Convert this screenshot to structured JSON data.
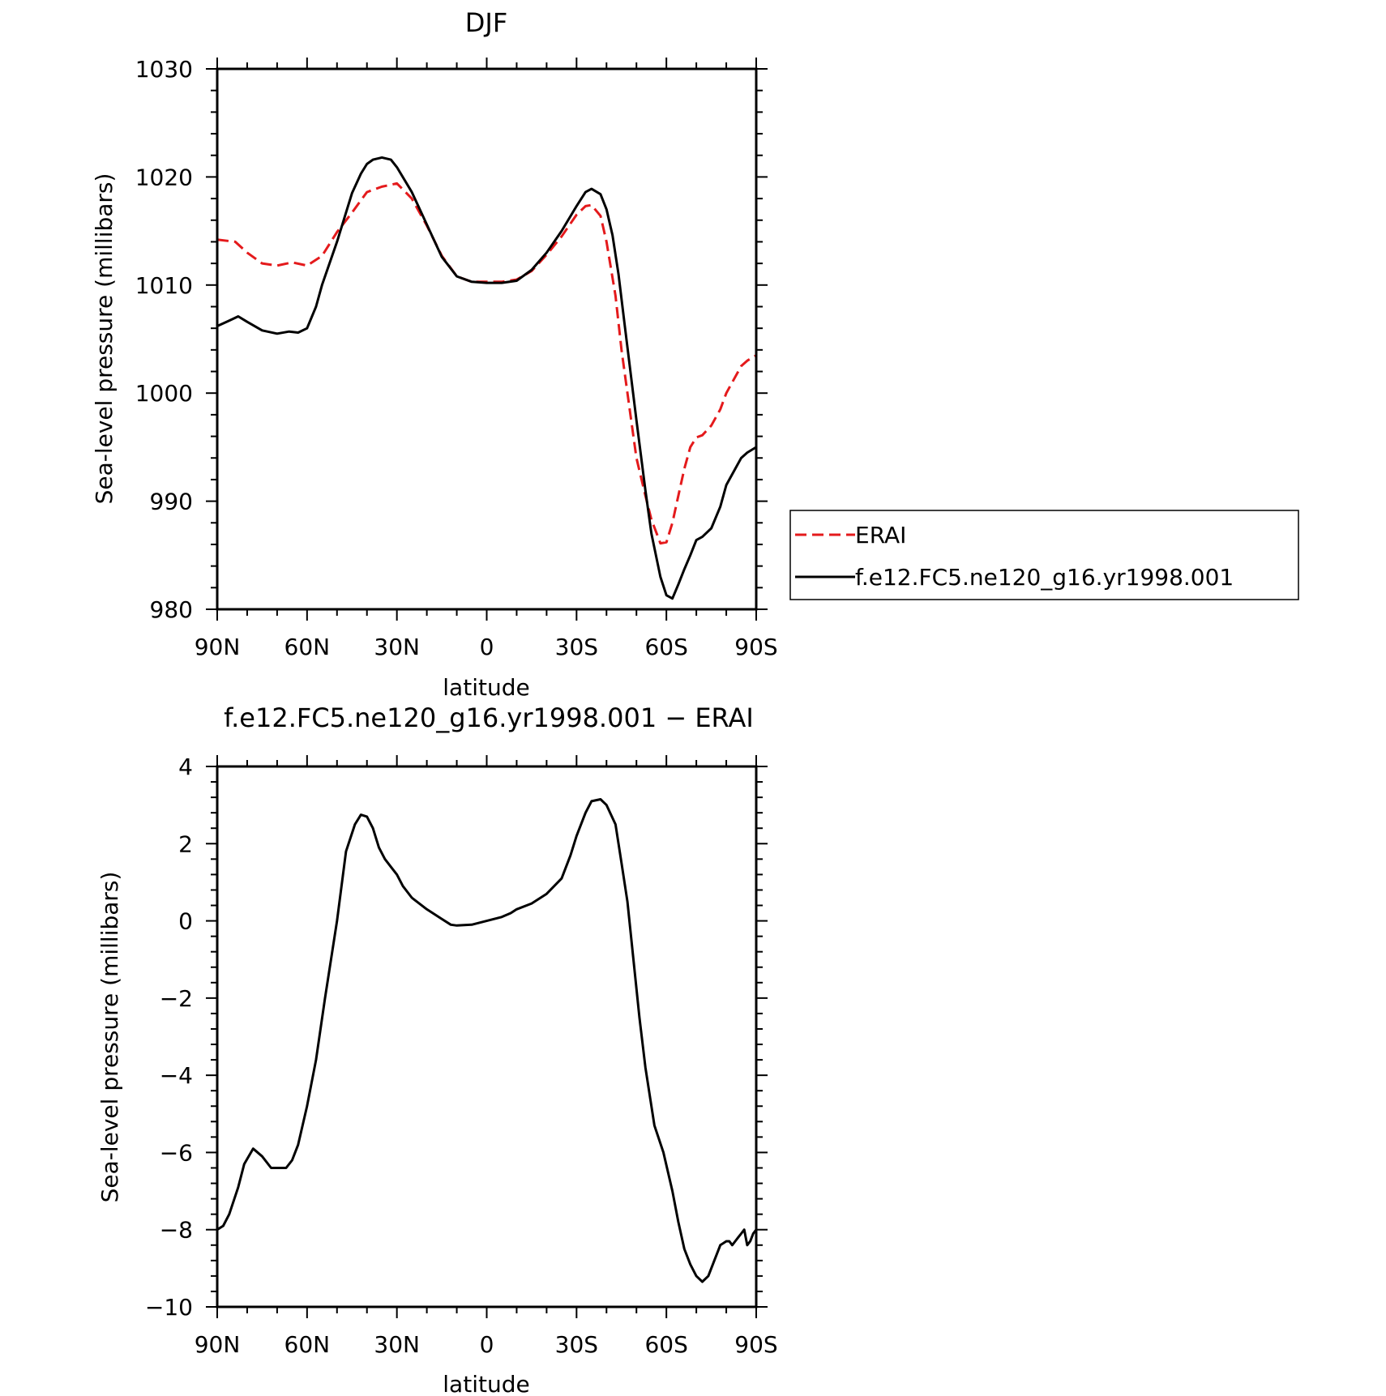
{
  "chart_data": [
    {
      "type": "line",
      "title": "DJF",
      "xlabel": "latitude",
      "ylabel": "Sea-level pressure (millibars)",
      "xlim": [
        90,
        -90
      ],
      "ylim": [
        980,
        1030
      ],
      "xticks": [
        90,
        60,
        30,
        0,
        -30,
        -60,
        -90
      ],
      "xtick_labels": [
        "90N",
        "60N",
        "30N",
        "0",
        "30S",
        "60S",
        "90S"
      ],
      "yticks": [
        980,
        990,
        1000,
        1010,
        1020,
        1030
      ],
      "ytick_labels": [
        "980",
        "990",
        "1000",
        "1010",
        "1020",
        "1030"
      ],
      "legend": "right",
      "series": [
        {
          "name": "ERAI",
          "color": "#e41a1c",
          "dash": "dashed",
          "x": [
            90,
            84,
            80,
            75,
            70,
            65,
            60,
            55,
            50,
            45,
            40,
            35,
            30,
            25,
            20,
            15,
            10,
            5,
            0,
            -5,
            -10,
            -15,
            -20,
            -25,
            -30,
            -33,
            -35,
            -38,
            -40,
            -43,
            -45,
            -48,
            -50,
            -53,
            -55,
            -58,
            -60,
            -62,
            -64,
            -66,
            -68,
            -70,
            -72,
            -75,
            -78,
            -80,
            -83,
            -85,
            -87,
            -90
          ],
          "y": [
            1014.2,
            1014.0,
            1013.0,
            1012.0,
            1011.8,
            1012.1,
            1011.8,
            1012.7,
            1014.9,
            1016.7,
            1018.6,
            1019.1,
            1019.4,
            1018.0,
            1015.5,
            1012.7,
            1010.8,
            1010.3,
            1010.3,
            1010.3,
            1010.5,
            1011.3,
            1012.8,
            1014.5,
            1016.5,
            1017.3,
            1017.4,
            1016.4,
            1014.0,
            1009.0,
            1004.0,
            998.0,
            994.0,
            990.5,
            988.3,
            986.1,
            986.2,
            988.0,
            990.5,
            993.0,
            995.0,
            995.9,
            996.1,
            997.0,
            998.5,
            1000.0,
            1001.5,
            1002.5,
            1003.0,
            1003.5
          ]
        },
        {
          "name": "f.e12.FC5.ne120_g16.yr1998.001",
          "color": "#000000",
          "dash": "solid",
          "x": [
            90,
            86,
            83,
            80,
            75,
            70,
            66,
            63,
            60,
            57,
            55,
            50,
            45,
            42,
            40,
            38,
            35,
            32,
            30,
            25,
            20,
            15,
            10,
            5,
            0,
            -5,
            -10,
            -15,
            -20,
            -25,
            -30,
            -33,
            -35,
            -38,
            -40,
            -42,
            -44,
            -46,
            -48,
            -50,
            -53,
            -55,
            -58,
            -60,
            -62,
            -64,
            -66,
            -68,
            -70,
            -72,
            -75,
            -78,
            -80,
            -83,
            -85,
            -87,
            -90
          ],
          "y": [
            1006.2,
            1006.7,
            1007.1,
            1006.6,
            1005.8,
            1005.5,
            1005.7,
            1005.6,
            1006.0,
            1008.0,
            1010.0,
            1014.0,
            1018.5,
            1020.3,
            1021.2,
            1021.6,
            1021.8,
            1021.6,
            1020.9,
            1018.6,
            1015.6,
            1012.6,
            1010.8,
            1010.3,
            1010.2,
            1010.2,
            1010.4,
            1011.4,
            1013.0,
            1015.0,
            1017.3,
            1018.6,
            1018.9,
            1018.4,
            1017.0,
            1014.6,
            1011.0,
            1006.5,
            1002.0,
            997.5,
            991.0,
            987.0,
            983.0,
            981.3,
            981.0,
            982.3,
            983.7,
            985.0,
            986.4,
            986.7,
            987.5,
            989.5,
            991.5,
            993.0,
            994.0,
            994.5,
            995.0
          ]
        }
      ]
    },
    {
      "type": "line",
      "title": "f.e12.FC5.ne120_g16.yr1998.001 − ERAI",
      "xlabel": "latitude",
      "ylabel": "Sea-level pressure (millibars)",
      "xlim": [
        90,
        -90
      ],
      "ylim": [
        -10,
        4
      ],
      "xticks": [
        90,
        60,
        30,
        0,
        -30,
        -60,
        -90
      ],
      "xtick_labels": [
        "90N",
        "60N",
        "30N",
        "0",
        "30S",
        "60S",
        "90S"
      ],
      "yticks": [
        -10,
        -8,
        -6,
        -4,
        -2,
        0,
        2,
        4
      ],
      "ytick_labels": [
        "−10",
        "−8",
        "−6",
        "−4",
        "−2",
        "0",
        "2",
        "4"
      ],
      "series": [
        {
          "color": "#000000",
          "x": [
            90,
            88,
            86,
            83,
            81,
            78,
            75,
            72,
            70,
            69,
            67,
            65,
            63,
            60,
            57,
            54,
            50,
            47,
            44,
            42,
            40,
            38,
            36,
            34,
            32,
            30,
            28,
            25,
            20,
            15,
            12,
            10,
            5,
            0,
            -5,
            -8,
            -10,
            -15,
            -20,
            -25,
            -28,
            -30,
            -33,
            -35,
            -38,
            -40,
            -43,
            -45,
            -47,
            -49,
            -51,
            -53,
            -56,
            -59,
            -62,
            -64,
            -66,
            -68,
            -70,
            -72,
            -74,
            -76,
            -78,
            -80,
            -81,
            -82,
            -83,
            -84,
            -85,
            -86,
            -87,
            -88,
            -89,
            -90
          ],
          "y": [
            -8.0,
            -7.9,
            -7.6,
            -6.9,
            -6.3,
            -5.9,
            -6.1,
            -6.4,
            -6.4,
            -6.4,
            -6.4,
            -6.2,
            -5.8,
            -4.8,
            -3.6,
            -2.0,
            0.0,
            1.8,
            2.5,
            2.75,
            2.7,
            2.4,
            1.9,
            1.6,
            1.4,
            1.2,
            0.9,
            0.6,
            0.3,
            0.05,
            -0.1,
            -0.12,
            -0.1,
            0.0,
            0.1,
            0.2,
            0.3,
            0.45,
            0.7,
            1.1,
            1.7,
            2.2,
            2.8,
            3.1,
            3.15,
            3.0,
            2.5,
            1.5,
            0.5,
            -1.0,
            -2.5,
            -3.8,
            -5.3,
            -6.0,
            -7.0,
            -7.8,
            -8.5,
            -8.9,
            -9.2,
            -9.35,
            -9.2,
            -8.8,
            -8.4,
            -8.3,
            -8.3,
            -8.4,
            -8.3,
            -8.2,
            -8.1,
            -8.0,
            -8.4,
            -8.3,
            -8.1,
            -8.0
          ]
        }
      ]
    }
  ]
}
